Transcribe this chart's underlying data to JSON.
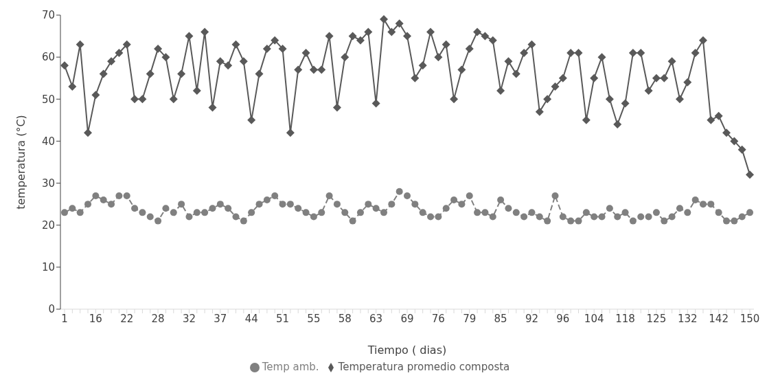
{
  "chart_data": {
    "type": "line",
    "xlabel": "Tiempo ( dias)",
    "ylabel": "temperatura (°C)",
    "categories": [
      "1",
      null,
      null,
      null,
      "16",
      null,
      null,
      null,
      "22",
      null,
      null,
      null,
      "28",
      null,
      null,
      null,
      "32",
      null,
      null,
      null,
      "37",
      null,
      null,
      null,
      "44",
      null,
      null,
      null,
      "51",
      null,
      null,
      null,
      "55",
      null,
      null,
      null,
      "58",
      null,
      null,
      null,
      "63",
      null,
      null,
      null,
      "69",
      null,
      null,
      null,
      "76",
      null,
      null,
      null,
      "79",
      null,
      null,
      null,
      "85",
      null,
      null,
      null,
      "92",
      null,
      null,
      null,
      "96",
      null,
      null,
      null,
      "104",
      null,
      null,
      null,
      "118",
      null,
      null,
      null,
      "125",
      null,
      null,
      null,
      "132",
      null,
      null,
      null,
      "142",
      null,
      null,
      null,
      "150"
    ],
    "series": [
      {
        "name": "Temperatura promedio composta",
        "color": "#595959",
        "marker": "diamond",
        "line_style": "solid",
        "values": [
          58,
          53,
          63,
          42,
          51,
          56,
          59,
          61,
          63,
          50,
          50,
          56,
          62,
          60,
          50,
          56,
          65,
          52,
          66,
          48,
          59,
          58,
          63,
          59,
          45,
          56,
          62,
          64,
          62,
          42,
          57,
          61,
          57,
          57,
          65,
          48,
          60,
          65,
          64,
          66,
          49,
          69,
          66,
          68,
          65,
          55,
          58,
          66,
          60,
          63,
          50,
          57,
          62,
          66,
          65,
          64,
          52,
          59,
          56,
          61,
          63,
          47,
          50,
          53,
          55,
          61,
          61,
          45,
          55,
          60,
          50,
          44,
          49,
          61,
          61,
          52,
          55,
          55,
          59,
          50,
          54,
          61,
          64,
          45,
          46,
          42,
          40,
          38,
          32
        ]
      },
      {
        "name": "Temp amb.",
        "color": "#808080",
        "marker": "circle",
        "line_style": "dashed",
        "values": [
          23,
          24,
          23,
          25,
          27,
          26,
          25,
          27,
          27,
          24,
          23,
          22,
          21,
          24,
          23,
          25,
          22,
          23,
          23,
          24,
          25,
          24,
          22,
          21,
          23,
          25,
          26,
          27,
          25,
          25,
          24,
          23,
          22,
          23,
          27,
          25,
          23,
          21,
          23,
          25,
          24,
          23,
          25,
          28,
          27,
          25,
          23,
          22,
          22,
          24,
          26,
          25,
          27,
          23,
          23,
          22,
          26,
          24,
          23,
          22,
          23,
          22,
          21,
          27,
          22,
          21,
          21,
          23,
          22,
          22,
          24,
          22,
          23,
          21,
          22,
          22,
          23,
          21,
          22,
          24,
          23,
          26,
          25,
          25,
          23,
          21,
          21,
          22,
          23
        ]
      }
    ],
    "ylim": [
      0,
      70
    ],
    "yticks": [
      0,
      10,
      20,
      30,
      40,
      50,
      60,
      70
    ],
    "grid": false,
    "legend": "bottom"
  }
}
